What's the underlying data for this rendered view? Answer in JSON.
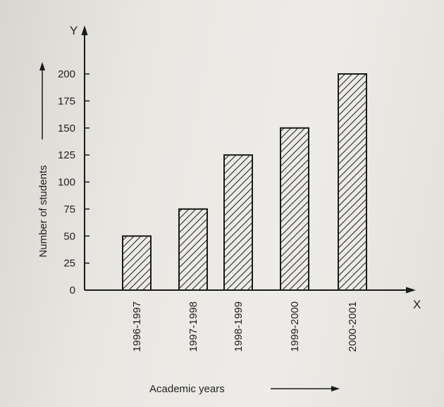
{
  "chart_data": {
    "type": "bar",
    "categories": [
      "1996-1997",
      "1997-1998",
      "1998-1999",
      "1999-2000",
      "2000-2001"
    ],
    "values": [
      50,
      75,
      125,
      150,
      200
    ],
    "title": "",
    "xlabel": "Academic years",
    "ylabel": "Number of students",
    "x_axis_letter": "X",
    "y_axis_letter": "Y",
    "ylim": [
      0,
      200
    ],
    "yticks": [
      0,
      25,
      50,
      75,
      100,
      125,
      150,
      175,
      200
    ],
    "grid": false,
    "bar_fill": "hatched",
    "colors": {
      "bar_edge": "#1a1a1a",
      "hatch": "#2a2a2a",
      "axis": "#1a1a1a"
    }
  }
}
